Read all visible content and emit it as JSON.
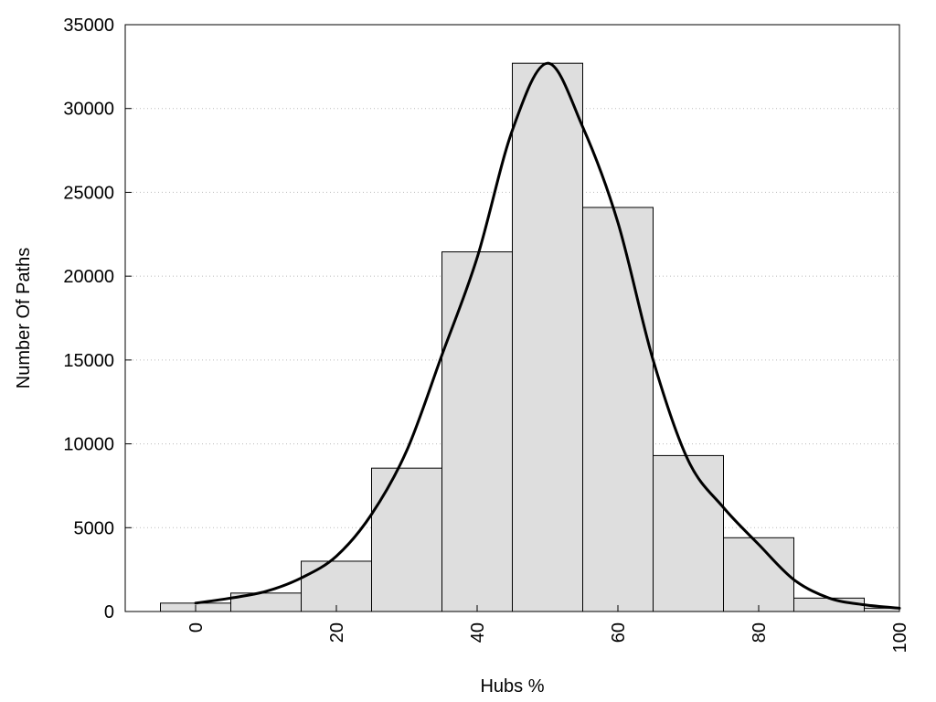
{
  "chart_data": {
    "type": "bar",
    "title": "",
    "xlabel": "Hubs %",
    "ylabel": "Number Of Paths",
    "xlim": [
      -10,
      100
    ],
    "ylim": [
      0,
      35000
    ],
    "xticks": [
      0,
      20,
      40,
      60,
      80,
      100
    ],
    "yticks": [
      0,
      5000,
      10000,
      15000,
      20000,
      25000,
      30000,
      35000
    ],
    "grid": "horizontal dotted",
    "bin_width": 10,
    "bins": [
      {
        "center": 0,
        "value": 500
      },
      {
        "center": 10,
        "value": 1100
      },
      {
        "center": 20,
        "value": 3000
      },
      {
        "center": 30,
        "value": 8550
      },
      {
        "center": 40,
        "value": 21450
      },
      {
        "center": 50,
        "value": 32700
      },
      {
        "center": 60,
        "value": 24100
      },
      {
        "center": 70,
        "value": 9300
      },
      {
        "center": 80,
        "value": 4400
      },
      {
        "center": 90,
        "value": 800
      },
      {
        "center": 100,
        "value": 200
      }
    ],
    "density_curve": {
      "x": [
        0,
        5,
        10,
        15,
        20,
        25,
        30,
        35,
        40,
        45,
        50,
        55,
        60,
        65,
        70,
        75,
        80,
        85,
        90,
        95,
        100
      ],
      "y": [
        500,
        800,
        1200,
        2000,
        3300,
        5800,
        9600,
        15300,
        21100,
        28700,
        32700,
        28900,
        23200,
        15000,
        9000,
        6200,
        4000,
        1900,
        800,
        400,
        200
      ]
    },
    "colors": {
      "bar_fill": "#dedede",
      "bar_stroke": "#000000",
      "curve": "#000000",
      "grid": "#bbbbbb"
    }
  }
}
